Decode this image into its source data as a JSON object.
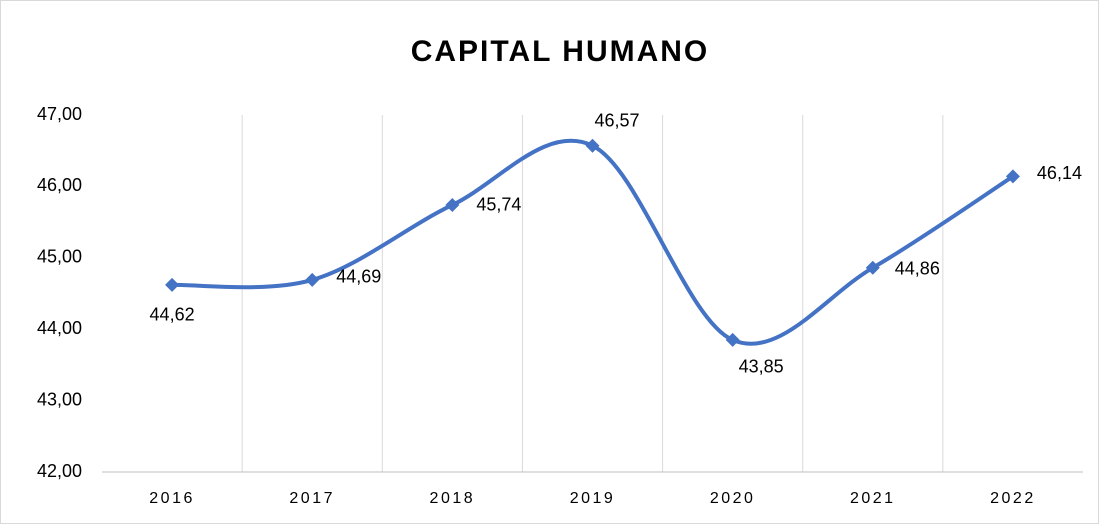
{
  "chart_data": {
    "type": "line",
    "title": "CAPITAL HUMANO",
    "categories": [
      "2016",
      "2017",
      "2018",
      "2019",
      "2020",
      "2021",
      "2022"
    ],
    "series": [
      {
        "name": "Capital Humano",
        "color": "#4472c4",
        "values": [
          44.62,
          44.69,
          45.74,
          46.57,
          43.85,
          44.86,
          46.14
        ],
        "value_labels": [
          "44,62",
          "44,69",
          "45,74",
          "46,57",
          "43,85",
          "44,86",
          "46,14"
        ]
      }
    ],
    "ylim": [
      42,
      47
    ],
    "yticks": [
      {
        "value": 42,
        "label": "42,00"
      },
      {
        "value": 43,
        "label": "43,00"
      },
      {
        "value": 44,
        "label": "44,00"
      },
      {
        "value": 45,
        "label": "45,00"
      },
      {
        "value": 46,
        "label": "46,00"
      },
      {
        "value": 47,
        "label": "47,00"
      }
    ],
    "grid": true,
    "smooth": true
  }
}
